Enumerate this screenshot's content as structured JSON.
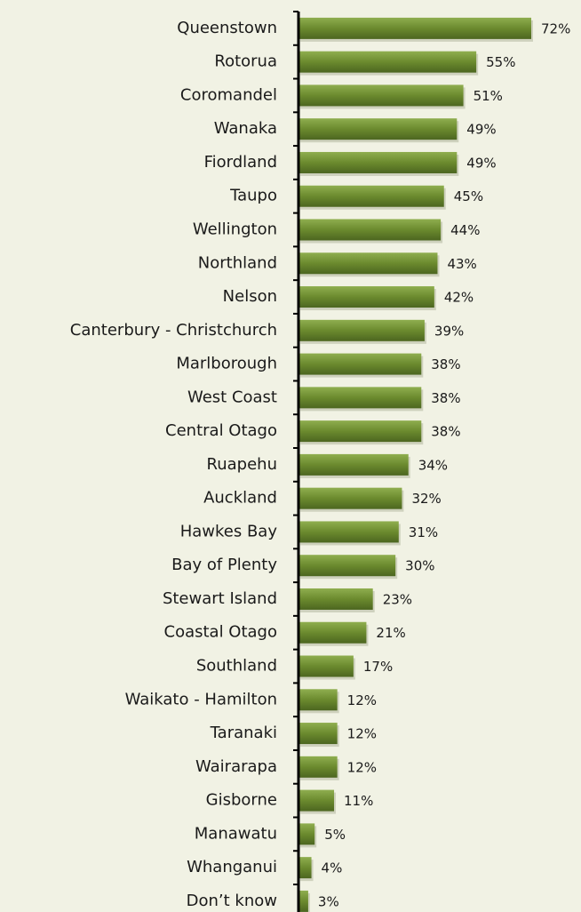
{
  "chart_data": {
    "type": "bar",
    "orientation": "horizontal",
    "color": "#6b8a2e",
    "categories": [
      "Queenstown",
      "Rotorua",
      "Coromandel",
      "Wanaka",
      "Fiordland",
      "Taupo",
      "Wellington",
      "Northland",
      "Nelson",
      "Canterbury - Christchurch",
      "Marlborough",
      "West Coast",
      "Central Otago",
      "Ruapehu",
      "Auckland",
      "Hawkes Bay",
      "Bay of Plenty",
      "Stewart Island",
      "Coastal Otago",
      "Southland",
      "Waikato - Hamilton",
      "Taranaki",
      "Wairarapa",
      "Gisborne",
      "Manawatu",
      "Whanganui",
      "Don’t know"
    ],
    "values": [
      72,
      55,
      51,
      49,
      49,
      45,
      44,
      43,
      42,
      39,
      38,
      38,
      38,
      34,
      32,
      31,
      30,
      23,
      21,
      17,
      12,
      12,
      12,
      11,
      5,
      4,
      3
    ],
    "value_labels": [
      "72%",
      "55%",
      "51%",
      "49%",
      "49%",
      "45%",
      "44%",
      "43%",
      "42%",
      "39%",
      "38%",
      "38%",
      "38%",
      "34%",
      "32%",
      "31%",
      "30%",
      "23%",
      "21%",
      "17%",
      "12%",
      "12%",
      "12%",
      "11%",
      "5%",
      "4%",
      "3%"
    ]
  }
}
